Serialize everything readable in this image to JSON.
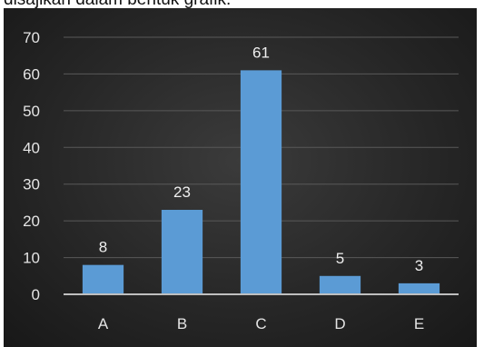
{
  "header": {
    "caption": "disajikan dalam bentuk grafik."
  },
  "colors": {
    "background": "#262626",
    "bar": "#5b9bd5",
    "gridline": "#595959",
    "axis": "#bfbfbf",
    "text": "#e4e4e4"
  },
  "chart_data": {
    "type": "bar",
    "title": "",
    "xlabel": "",
    "ylabel": "",
    "categories": [
      "A",
      "B",
      "C",
      "D",
      "E"
    ],
    "values": [
      8,
      23,
      61,
      5,
      3
    ],
    "data_labels": [
      "8",
      "23",
      "61",
      "5",
      "3"
    ],
    "ylim": [
      0,
      70
    ],
    "y_ticks": [
      0,
      10,
      20,
      30,
      40,
      50,
      60,
      70
    ],
    "y_tick_labels": [
      "0",
      "10",
      "20",
      "30",
      "40",
      "50",
      "60",
      "70"
    ],
    "grid": true,
    "legend": "none"
  }
}
